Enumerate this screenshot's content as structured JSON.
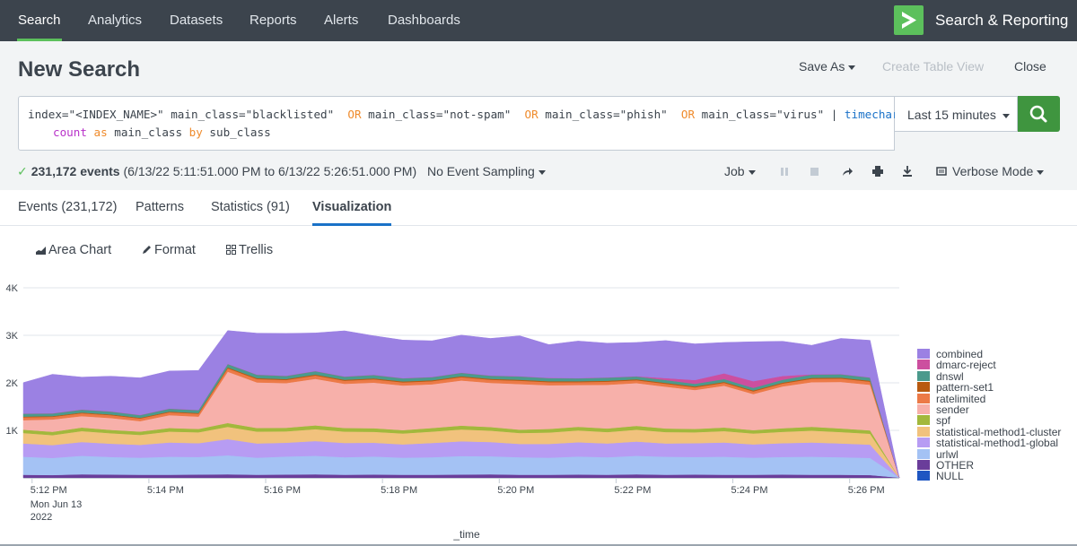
{
  "nav": {
    "tabs": [
      {
        "label": "Search",
        "active": true
      },
      {
        "label": "Analytics"
      },
      {
        "label": "Datasets"
      },
      {
        "label": "Reports"
      },
      {
        "label": "Alerts"
      },
      {
        "label": "Dashboards"
      }
    ],
    "app_title": "Search & Reporting",
    "accent_color": "#5cc05c"
  },
  "header": {
    "title": "New Search",
    "save_as": "Save As",
    "create_table_view": "Create Table View",
    "close": "Close"
  },
  "search": {
    "line1": {
      "p1": "index=\"<INDEX_NAME>\" main_class=\"blacklisted\"  ",
      "or1": "OR",
      "p2": " main_class=\"not-spam\"  ",
      "or2": "OR",
      "p3": " main_class=\"phish\"  ",
      "or3": "OR",
      "p4": " main_class=\"virus\" | ",
      "cmd": "timechart"
    },
    "line2": {
      "fn": "count",
      "as": " as ",
      "field": "main_class ",
      "by": "by",
      "field2": " sub_class"
    },
    "time_range": "Last 15 minutes",
    "submit_icon": "search-icon"
  },
  "status": {
    "event_count": "231,172 events",
    "range": "(6/13/22 5:11:51.000 PM to 6/13/22 5:26:51.000 PM)",
    "sampling": "No Event Sampling",
    "job": "Job",
    "mode": "Verbose Mode"
  },
  "tabs": [
    {
      "label": "Events (231,172)"
    },
    {
      "label": "Patterns"
    },
    {
      "label": "Statistics (91)"
    },
    {
      "label": "Visualization",
      "active": true
    }
  ],
  "viz_toolbar": {
    "chart_type": "Area Chart",
    "format": "Format",
    "trellis": "Trellis"
  },
  "chart_data": {
    "type": "area",
    "stacked": true,
    "xlabel": "_time",
    "x_ticks": [
      "5:12 PM",
      "5:14 PM",
      "5:16 PM",
      "5:18 PM",
      "5:20 PM",
      "5:22 PM",
      "5:24 PM",
      "5:26 PM"
    ],
    "x_tick_sub": [
      "Mon Jun 13",
      "2022"
    ],
    "y_ticks": [
      "1K",
      "2K",
      "3K",
      "4K"
    ],
    "ylim": [
      0,
      4000
    ],
    "grid": true,
    "legend_position": "right",
    "series": [
      {
        "name": "NULL",
        "color": "#1e56c2",
        "values": [
          5,
          5,
          5,
          5,
          5,
          5,
          5,
          5,
          5,
          5,
          5,
          5,
          5,
          5,
          5,
          5,
          5,
          5,
          5,
          5,
          5,
          5,
          5,
          5,
          5,
          5,
          5,
          5,
          5,
          5,
          5
        ]
      },
      {
        "name": "OTHER",
        "color": "#6a3d9a",
        "values": [
          60,
          55,
          70,
          65,
          60,
          60,
          65,
          70,
          60,
          65,
          70,
          60,
          65,
          60,
          60,
          65,
          70,
          60,
          60,
          65,
          60,
          70,
          60,
          65,
          60,
          60,
          65,
          60,
          60,
          55,
          0
        ]
      },
      {
        "name": "urlwl",
        "color": "#a4c2f4",
        "values": [
          380,
          360,
          390,
          370,
          360,
          380,
          370,
          400,
          360,
          380,
          390,
          370,
          380,
          360,
          370,
          390,
          380,
          370,
          360,
          380,
          370,
          390,
          380,
          370,
          380,
          360,
          370,
          380,
          370,
          360,
          0
        ]
      },
      {
        "name": "statistical-method1-global",
        "color": "#b79cf3",
        "values": [
          280,
          270,
          290,
          280,
          270,
          300,
          290,
          340,
          300,
          290,
          310,
          300,
          290,
          280,
          300,
          310,
          300,
          280,
          290,
          300,
          290,
          300,
          280,
          290,
          300,
          280,
          290,
          300,
          290,
          280,
          0
        ]
      },
      {
        "name": "statistical-method1-cluster",
        "color": "#f1c27d",
        "values": [
          220,
          210,
          230,
          220,
          210,
          230,
          230,
          260,
          250,
          240,
          250,
          240,
          230,
          230,
          240,
          250,
          240,
          230,
          240,
          250,
          240,
          250,
          240,
          230,
          240,
          230,
          240,
          250,
          240,
          230,
          0
        ]
      },
      {
        "name": "spf",
        "color": "#a2b83c",
        "values": [
          70,
          70,
          75,
          70,
          70,
          75,
          70,
          80,
          75,
          75,
          80,
          75,
          75,
          70,
          75,
          80,
          75,
          70,
          75,
          75,
          75,
          80,
          75,
          70,
          75,
          70,
          75,
          80,
          75,
          70,
          0
        ]
      },
      {
        "name": "sender",
        "color": "#f7b0aa",
        "values": [
          200,
          260,
          240,
          250,
          220,
          270,
          260,
          1080,
          960,
          940,
          980,
          930,
          960,
          940,
          920,
          950,
          930,
          960,
          920,
          880,
          920,
          900,
          880,
          820,
          880,
          760,
          880,
          940,
          980,
          960,
          0
        ]
      },
      {
        "name": "ratelimited",
        "color": "#ec7a47",
        "values": [
          60,
          55,
          60,
          60,
          55,
          60,
          60,
          70,
          70,
          65,
          70,
          65,
          70,
          65,
          65,
          70,
          65,
          70,
          65,
          60,
          65,
          60,
          60,
          55,
          60,
          55,
          60,
          70,
          70,
          65,
          0
        ]
      },
      {
        "name": "pattern-set1",
        "color": "#b85a10",
        "values": [
          15,
          15,
          15,
          15,
          15,
          15,
          15,
          20,
          20,
          20,
          20,
          20,
          20,
          20,
          20,
          20,
          20,
          20,
          20,
          20,
          20,
          20,
          20,
          20,
          20,
          20,
          20,
          20,
          20,
          20,
          0
        ]
      },
      {
        "name": "dnswl",
        "color": "#4b9a8c",
        "values": [
          60,
          55,
          60,
          60,
          55,
          60,
          60,
          70,
          70,
          65,
          70,
          65,
          70,
          65,
          65,
          70,
          65,
          70,
          65,
          60,
          65,
          60,
          60,
          55,
          60,
          55,
          60,
          70,
          70,
          65,
          0
        ]
      },
      {
        "name": "dmarc-reject",
        "color": "#cc4f9f",
        "values": [
          5,
          5,
          5,
          5,
          5,
          5,
          5,
          5,
          5,
          5,
          5,
          5,
          5,
          5,
          5,
          5,
          5,
          5,
          5,
          5,
          5,
          5,
          40,
          80,
          120,
          140,
          80,
          5,
          5,
          5,
          0
        ]
      },
      {
        "name": "combined",
        "color": "#9b81e3",
        "values": [
          650,
          820,
          680,
          740,
          780,
          790,
          830,
          700,
          870,
          890,
          800,
          960,
          820,
          800,
          760,
          790,
          780,
          850,
          700,
          780,
          720,
          710,
          790,
          760,
          650,
          830,
          730,
          610,
          750,
          780,
          0
        ]
      }
    ]
  }
}
